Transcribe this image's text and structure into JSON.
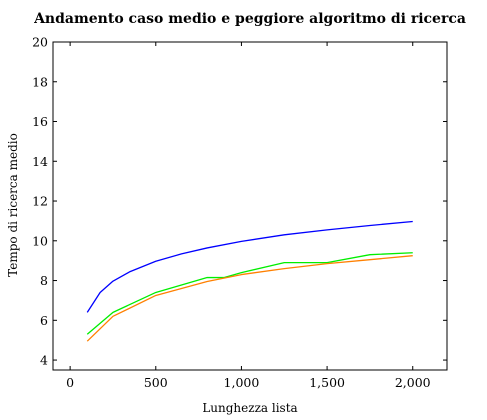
{
  "chart_data": {
    "type": "line",
    "title": "Andamento caso medio e peggiore algoritmo di ricerca",
    "xlabel": "Lunghezza lista",
    "ylabel": "Tempo di ricerca medio",
    "xlim": [
      -100,
      2200
    ],
    "ylim": [
      3.5,
      20
    ],
    "xticks": [
      0,
      500,
      1000,
      1500,
      2000
    ],
    "xtick_labels": [
      "0",
      "500",
      "1,000",
      "1,500",
      "2,000"
    ],
    "yticks": [
      4,
      6,
      8,
      10,
      12,
      14,
      16,
      18,
      20
    ],
    "ytick_labels": [
      "4",
      "6",
      "8",
      "10",
      "12",
      "14",
      "16",
      "18",
      "20"
    ],
    "grid": false,
    "legend": "none",
    "series": [
      {
        "color": "#0000ff",
        "x": [
          100,
          175,
          250,
          350,
          500,
          650,
          800,
          1000,
          1250,
          1500,
          1750,
          2000
        ],
        "y": [
          6.4,
          7.4,
          7.97,
          8.45,
          8.97,
          9.34,
          9.64,
          9.97,
          10.3,
          10.55,
          10.77,
          10.97
        ]
      },
      {
        "color": "#00ee00",
        "x": [
          100,
          250,
          500,
          800,
          900,
          1000,
          1250,
          1500,
          1750,
          2000
        ],
        "y": [
          5.3,
          6.4,
          7.4,
          8.15,
          8.15,
          8.4,
          8.9,
          8.9,
          9.3,
          9.4
        ]
      },
      {
        "color": "#ff8000",
        "x": [
          100,
          250,
          500,
          800,
          1000,
          1250,
          1500,
          1750,
          2000
        ],
        "y": [
          4.95,
          6.2,
          7.25,
          7.95,
          8.3,
          8.6,
          8.85,
          9.05,
          9.25
        ]
      }
    ]
  }
}
